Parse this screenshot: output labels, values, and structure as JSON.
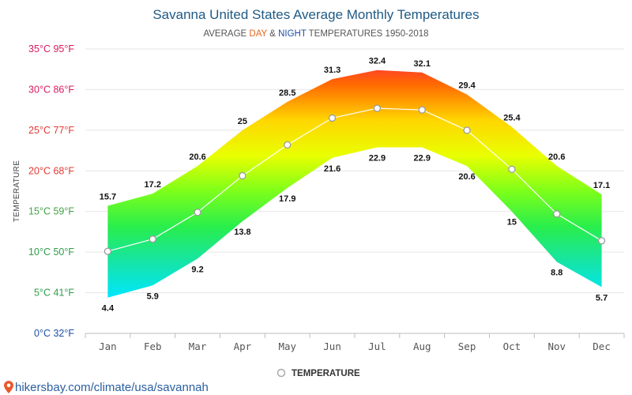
{
  "chart_data": {
    "type": "area",
    "title": "Savanna United States Average Monthly Temperatures",
    "subtitle": {
      "prefix": "AVERAGE",
      "day": "DAY",
      "amp": "&",
      "night": "NIGHT",
      "suffix": "TEMPERATURES 1950-2018"
    },
    "ylabel": "TEMPERATURE",
    "ylim": [
      0,
      35
    ],
    "y_ticks": [
      {
        "value": 35,
        "label": "35°C 95°F"
      },
      {
        "value": 30,
        "label": "30°C 86°F"
      },
      {
        "value": 25,
        "label": "25°C 77°F"
      },
      {
        "value": 20,
        "label": "20°C 68°F"
      },
      {
        "value": 15,
        "label": "15°C 59°F"
      },
      {
        "value": 10,
        "label": "10°C 50°F"
      },
      {
        "value": 5,
        "label": "5°C 41°F"
      },
      {
        "value": 0,
        "label": "0°C 32°F"
      }
    ],
    "categories": [
      "Jan",
      "Feb",
      "Mar",
      "Apr",
      "May",
      "Jun",
      "Jul",
      "Aug",
      "Sep",
      "Oct",
      "Nov",
      "Dec"
    ],
    "day_labels": [
      "15.7",
      "17.2",
      "20.6",
      "25",
      "28.5",
      "31.3",
      "32.4",
      "32.1",
      "29.4",
      "25.4",
      "20.6",
      "17.1"
    ],
    "night_labels": [
      "4.4",
      "5.9",
      "9.2",
      "13.8",
      "17.9",
      "21.6",
      "22.9",
      "22.9",
      "20.6",
      "15",
      "8.8",
      "5.7"
    ],
    "series": [
      {
        "name": "DAY",
        "values": [
          15.7,
          17.2,
          20.6,
          25,
          28.5,
          31.3,
          32.4,
          32.1,
          29.4,
          25.4,
          20.6,
          17.1
        ]
      },
      {
        "name": "NIGHT",
        "values": [
          4.4,
          5.9,
          9.2,
          13.8,
          17.9,
          21.6,
          22.9,
          22.9,
          20.6,
          15,
          8.8,
          5.7
        ]
      },
      {
        "name": "TEMPERATURE",
        "values": [
          10.1,
          11.6,
          14.9,
          19.4,
          23.2,
          26.5,
          27.7,
          27.5,
          25.0,
          20.2,
          14.7,
          11.4
        ]
      }
    ],
    "legend": {
      "label": "TEMPERATURE",
      "placement": "bottom"
    },
    "grid": true,
    "colors": {
      "title": "#1f5a85",
      "day": "#e8641e",
      "night": "#1f4fa8",
      "footer": "#2a5fa0",
      "map_pin": "#e85a2c",
      "gradient": [
        "#ff1654",
        "#ff6a00",
        "#ffd600",
        "#e9ff00",
        "#7dff1a",
        "#29ee4c",
        "#15e4a7",
        "#00e7ff",
        "#1f4fe6"
      ]
    }
  },
  "footer": {
    "text": "hikersbay.com/climate/usa/savannah",
    "icon": "map-pin-icon"
  }
}
